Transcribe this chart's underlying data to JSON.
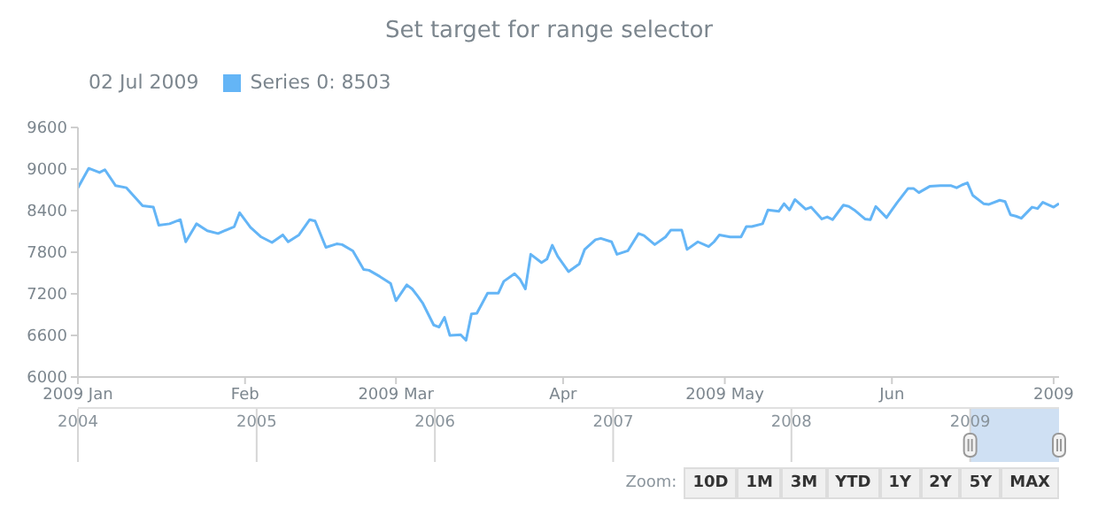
{
  "chart_data": {
    "type": "line",
    "title": "Set target for range selector",
    "legend": "top left",
    "grid": false,
    "marker": "none",
    "line_style": "solid",
    "xlim": [
      "2009-01-01",
      "2009-07-02"
    ],
    "xticks": [
      {
        "value": "2009-01-01",
        "label": "2009 Jan"
      },
      {
        "value": "2009-02-01",
        "label": "Feb"
      },
      {
        "value": "2009-03-01",
        "label": "2009 Mar"
      },
      {
        "value": "2009-04-01",
        "label": "Apr"
      },
      {
        "value": "2009-05-01",
        "label": "2009 May"
      },
      {
        "value": "2009-06-01",
        "label": "Jun"
      },
      {
        "value": "2009-07-01",
        "label": "2009"
      }
    ],
    "ylim": [
      6000,
      9600
    ],
    "yticks": [
      6000,
      6600,
      7200,
      7800,
      8400,
      9000,
      9600
    ],
    "x2lim": [
      "2004-01-01",
      "2009-07-02"
    ],
    "x2ticks": [
      "2004",
      "2005",
      "2006",
      "2007",
      "2008",
      "2009"
    ],
    "annotations": [
      "Zoom:",
      "10D",
      "1M",
      "3M",
      "YTD",
      "1Y",
      "2Y",
      "5Y",
      "MAX"
    ],
    "x": [
      "2009-01-01",
      "2009-01-03",
      "2009-01-05",
      "2009-01-06",
      "2009-01-08",
      "2009-01-10",
      "2009-01-13",
      "2009-01-15",
      "2009-01-16",
      "2009-01-18",
      "2009-01-20",
      "2009-01-21",
      "2009-01-23",
      "2009-01-25",
      "2009-01-27",
      "2009-01-30",
      "2009-01-31",
      "2009-02-02",
      "2009-02-04",
      "2009-02-06",
      "2009-02-08",
      "2009-02-09",
      "2009-02-11",
      "2009-02-13",
      "2009-02-14",
      "2009-02-16",
      "2009-02-18",
      "2009-02-19",
      "2009-02-21",
      "2009-02-23",
      "2009-02-24",
      "2009-02-26",
      "2009-02-28",
      "2009-03-01",
      "2009-03-03",
      "2009-03-04",
      "2009-03-05",
      "2009-03-06",
      "2009-03-08",
      "2009-03-09",
      "2009-03-10",
      "2009-03-11",
      "2009-03-13",
      "2009-03-14",
      "2009-03-15",
      "2009-03-16",
      "2009-03-18",
      "2009-03-20",
      "2009-03-21",
      "2009-03-23",
      "2009-03-24",
      "2009-03-25",
      "2009-03-26",
      "2009-03-28",
      "2009-03-29",
      "2009-03-30",
      "2009-03-31",
      "2009-04-02",
      "2009-04-04",
      "2009-04-05",
      "2009-04-07",
      "2009-04-08",
      "2009-04-10",
      "2009-04-11",
      "2009-04-13",
      "2009-04-15",
      "2009-04-16",
      "2009-04-18",
      "2009-04-20",
      "2009-04-21",
      "2009-04-23",
      "2009-04-24",
      "2009-04-26",
      "2009-04-28",
      "2009-04-29",
      "2009-04-30",
      "2009-05-02",
      "2009-05-04",
      "2009-05-05",
      "2009-05-06",
      "2009-05-08",
      "2009-05-09",
      "2009-05-11",
      "2009-05-12",
      "2009-05-13",
      "2009-05-14",
      "2009-05-16",
      "2009-05-17",
      "2009-05-19",
      "2009-05-20",
      "2009-05-21",
      "2009-05-23",
      "2009-05-24",
      "2009-05-25",
      "2009-05-27",
      "2009-05-28",
      "2009-05-29",
      "2009-05-31",
      "2009-06-01",
      "2009-06-02",
      "2009-06-04",
      "2009-06-05",
      "2009-06-06",
      "2009-06-08",
      "2009-06-10",
      "2009-06-12",
      "2009-06-13",
      "2009-06-14",
      "2009-06-15",
      "2009-06-16",
      "2009-06-18",
      "2009-06-19",
      "2009-06-21",
      "2009-06-22",
      "2009-06-23",
      "2009-06-24",
      "2009-06-25",
      "2009-06-27",
      "2009-06-28",
      "2009-06-29",
      "2009-07-01",
      "2009-07-02"
    ],
    "legend_title": "02 Jul 2009",
    "series": [
      {
        "name": "Series 0: 8503",
        "color": "#64b5f6",
        "values": [
          8730,
          9010,
          8950,
          8990,
          8760,
          8730,
          8470,
          8450,
          8190,
          8210,
          8270,
          7950,
          8210,
          8110,
          8070,
          8170,
          8370,
          8160,
          8020,
          7940,
          8050,
          7950,
          8050,
          8270,
          8250,
          7870,
          7920,
          7910,
          7820,
          7550,
          7540,
          7450,
          7350,
          7100,
          7330,
          7270,
          7170,
          7060,
          6750,
          6720,
          6860,
          6600,
          6610,
          6530,
          6910,
          6920,
          7210,
          7210,
          7380,
          7490,
          7410,
          7270,
          7770,
          7650,
          7700,
          7900,
          7740,
          7520,
          7630,
          7840,
          7980,
          8000,
          7950,
          7770,
          7820,
          8070,
          8040,
          7910,
          8020,
          8120,
          8120,
          7840,
          7950,
          7880,
          7950,
          8050,
          8020,
          8020,
          8170,
          8170,
          8210,
          8410,
          8390,
          8500,
          8410,
          8560,
          8420,
          8450,
          8280,
          8310,
          8270,
          8480,
          8460,
          8410,
          8280,
          8270,
          8460,
          8300,
          8410,
          8520,
          8720,
          8720,
          8660,
          8750,
          8760,
          8760,
          8730,
          8770,
          8800,
          8620,
          8500,
          8490,
          8550,
          8530,
          8340,
          8320,
          8290,
          8450,
          8430,
          8520,
          8450,
          8503
        ]
      }
    ]
  }
}
